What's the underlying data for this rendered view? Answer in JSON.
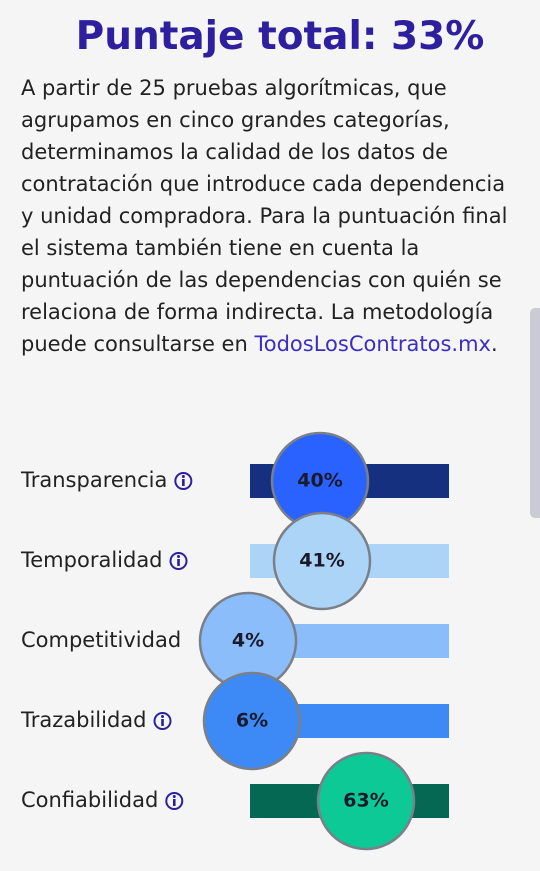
{
  "header": {
    "title": "Puntaje total: 33%"
  },
  "description": {
    "text": "A partir de 25 pruebas algorítmicas, que agrupamos en cinco grandes categorías, determinamos la calidad de los datos de contratación que introduce cada dependencia y unidad compradora. Para la puntuación final el sistema también tiene en cuenta la puntuación de las dependencias con quién se relaciona de forma indirecta. La metodología puede consultarse en",
    "link": "TodosLosContratos.mx",
    "end": "."
  },
  "metrics": [
    {
      "label": "Transparencia",
      "value": 40,
      "value_label": "40%",
      "track_color": "#14307f",
      "color": "#2a62ff",
      "info": true
    },
    {
      "label": "Temporalidad",
      "value": 41,
      "value_label": "41%",
      "track_color": "#acd4f6",
      "color": "#acd4f6",
      "info": true
    },
    {
      "label": "Competitividad",
      "value": 4,
      "value_label": "4%",
      "track_color": "#8bbdfa",
      "color": "#8bbdfa",
      "info": false
    },
    {
      "label": "Trazabilidad",
      "value": 6,
      "value_label": "6%",
      "track_color": "#3d8af7",
      "color": "#3d8af7",
      "info": true
    },
    {
      "label": "Confiabilidad",
      "value": 63,
      "value_label": "63%",
      "track_color": "#046852",
      "color": "#0cc995",
      "info": true
    }
  ]
}
